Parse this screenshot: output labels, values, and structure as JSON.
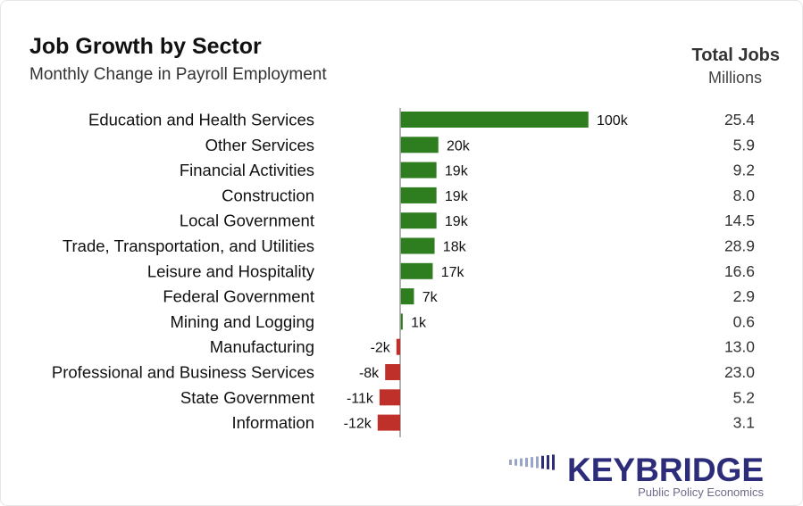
{
  "header": {
    "title": "Job Growth by Sector",
    "subtitle": "Monthly Change in Payroll Employment",
    "total_jobs_title": "Total Jobs",
    "total_jobs_unit": "Millions"
  },
  "colors": {
    "positive": "#2e7d1f",
    "negative": "#c0302a",
    "axis": "#999999",
    "logo_primary": "#2c2c7a",
    "logo_secondary": "#6b6b8a"
  },
  "logo": {
    "name": "KEYBRIDGE",
    "tagline": "Public Policy Economics"
  },
  "chart_data": {
    "type": "bar",
    "orientation": "horizontal",
    "title": "Job Growth by Sector",
    "subtitle": "Monthly Change in Payroll Employment",
    "categories": [
      "Education and Health Services",
      "Other Services",
      "Financial Activities",
      "Construction",
      "Local Government",
      "Trade, Transportation, and Utilities",
      "Leisure and Hospitality",
      "Federal Government",
      "Mining and Logging",
      "Manufacturing",
      "Professional and Business Services",
      "State Government",
      "Information"
    ],
    "values": [
      100,
      20,
      19,
      19,
      19,
      18,
      17,
      7,
      1,
      -2,
      -8,
      -11,
      -12
    ],
    "value_labels": [
      "100k",
      "20k",
      "19k",
      "19k",
      "19k",
      "18k",
      "17k",
      "7k",
      "1k",
      "-2k",
      "-8k",
      "-11k",
      "-12k"
    ],
    "total_jobs_millions": [
      "25.4",
      "5.9",
      "9.2",
      "8.0",
      "14.5",
      "28.9",
      "16.6",
      "2.9",
      "0.6",
      "13.0",
      "23.0",
      "5.2",
      "3.1"
    ],
    "grid": false,
    "legend": "none"
  }
}
